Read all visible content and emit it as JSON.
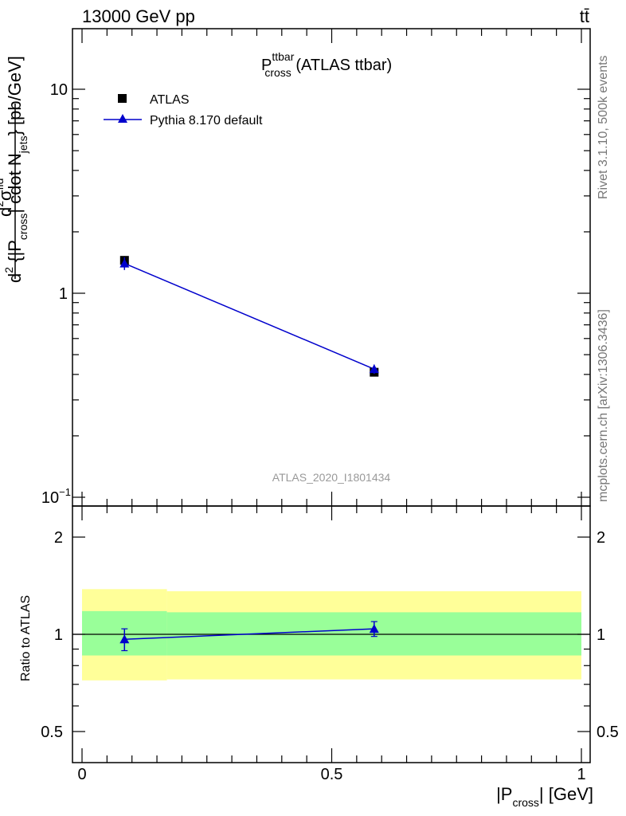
{
  "header": {
    "left": "13000 GeV pp",
    "right": "tt̄"
  },
  "side": {
    "rivet": "Rivet 3.1.10,  500k events",
    "mcplots": "mcplots.cern.ch [arXiv:1306.3436]"
  },
  "chart_data": [
    {
      "type": "scatter",
      "panel": "main",
      "title": {
        "base": "P",
        "sup": "ttbar",
        "sub": "cross",
        "rest": " (ATLAS ttbar)"
      },
      "watermark": "ATLAS_2020_I1801434",
      "ylabel_top": {
        "d": "d",
        "sup": "2",
        "sigma": "σ",
        "sigsup": "fid"
      },
      "ylabel_bottom": {
        "d2": "d",
        "sup2": "2",
        "open": " {|P",
        "sub": "cross",
        "close": "| cdot N",
        "jsub": "jets",
        "unit": "} [pb/GeV]"
      },
      "yscale": "log",
      "ylim": [
        0.1,
        20
      ],
      "yticks": [
        {
          "value": 10,
          "label": "10"
        },
        {
          "value": 1,
          "label": "1"
        },
        {
          "value": 0.1,
          "label": "10",
          "sup": "−1"
        }
      ],
      "legend": [
        {
          "name": "ATLAS",
          "marker": "square",
          "color": "#000000"
        },
        {
          "name": "Pythia 8.170 default",
          "marker": "triangle",
          "color": "#0000cc"
        }
      ],
      "series": [
        {
          "name": "ATLAS",
          "x": [
            0.085,
            0.585
          ],
          "y": [
            1.45,
            0.41
          ],
          "yerr": [
            0.05,
            0.012
          ]
        },
        {
          "name": "Pythia 8.170 default",
          "x": [
            0.085,
            0.585
          ],
          "y": [
            1.4,
            0.425
          ],
          "yerr": [
            0.1,
            0.022
          ]
        }
      ]
    },
    {
      "type": "scatter",
      "panel": "ratio",
      "ylabel": "Ratio to ATLAS",
      "xlabel": {
        "open": "|P",
        "sub": "cross",
        "close": "| [GeV]"
      },
      "yscale": "log",
      "ylim": [
        0.38,
        2.5
      ],
      "xlim": [
        -0.02,
        1.01
      ],
      "xticks": [
        {
          "value": 0,
          "label": "0"
        },
        {
          "value": 0.5,
          "label": "0.5"
        },
        {
          "value": 1,
          "label": "1"
        }
      ],
      "yticks": [
        {
          "value": 2,
          "label": "2"
        },
        {
          "value": 1,
          "label": "1"
        },
        {
          "value": 0.5,
          "label": "0.5"
        }
      ],
      "bands": [
        {
          "x0": 0.0,
          "x1": 0.17,
          "outer": [
            0.72,
            1.38
          ],
          "inner": [
            0.86,
            1.18
          ]
        },
        {
          "x0": 0.17,
          "x1": 1.0,
          "outer": [
            0.725,
            1.36
          ],
          "inner": [
            0.86,
            1.17
          ]
        }
      ],
      "band_colors": {
        "outer": "#ffff99",
        "inner": "#99ff99"
      },
      "series": [
        {
          "name": "Pythia 8.170 default",
          "x": [
            0.085,
            0.585
          ],
          "y": [
            0.965,
            1.04
          ],
          "yerr": [
            0.075,
            0.055
          ]
        }
      ]
    }
  ]
}
